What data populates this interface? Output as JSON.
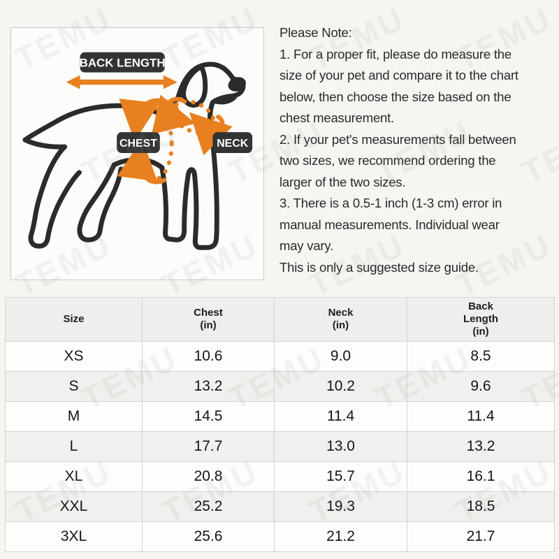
{
  "diagram": {
    "labels": {
      "back_length": "BACK LENGTH",
      "chest": "CHEST",
      "neck": "NECK"
    }
  },
  "notes": {
    "lines": [
      "Please Note:",
      "1. For a proper fit, please do measure the",
      "size of your pet and compare it to the chart",
      "below, then choose the size based on the",
      "chest measurement.",
      "2. If your pet's measurements fall between",
      "two sizes, we recommend ordering the",
      "larger of the two sizes.",
      "3. There is a 0.5-1 inch (1-3 cm) error in",
      "manual measurements. Individual wear",
      "may vary.",
      "This is only a suggested size guide."
    ]
  },
  "table": {
    "headers": [
      "Size",
      "Chest\n(in)",
      "Neck\n(in)",
      "Back\nLength\n(in)"
    ],
    "rows": [
      {
        "size": "XS",
        "chest_in": "10.6",
        "neck_in": "9.0",
        "back_length_in": "8.5"
      },
      {
        "size": "S",
        "chest_in": "13.2",
        "neck_in": "10.2",
        "back_length_in": "9.6"
      },
      {
        "size": "M",
        "chest_in": "14.5",
        "neck_in": "11.4",
        "back_length_in": "11.4"
      },
      {
        "size": "L",
        "chest_in": "17.7",
        "neck_in": "13.0",
        "back_length_in": "13.2"
      },
      {
        "size": "XL",
        "chest_in": "20.8",
        "neck_in": "15.7",
        "back_length_in": "16.1"
      },
      {
        "size": "XXL",
        "chest_in": "25.2",
        "neck_in": "19.3",
        "back_length_in": "18.5"
      },
      {
        "size": "3XL",
        "chest_in": "25.6",
        "neck_in": "21.2",
        "back_length_in": "21.7"
      }
    ]
  },
  "watermark": {
    "text": "TEMU"
  },
  "colors": {
    "accent_orange": "#e8801f",
    "label_dark": "#333333",
    "dog_outline": "#2b2b2b",
    "table_border": "#d4d3d1",
    "header_bg": "#efeeec",
    "alt_row_bg": "#f1f0ee",
    "row_bg": "#fdfdfc",
    "page_bg": "#f6f5f2"
  }
}
